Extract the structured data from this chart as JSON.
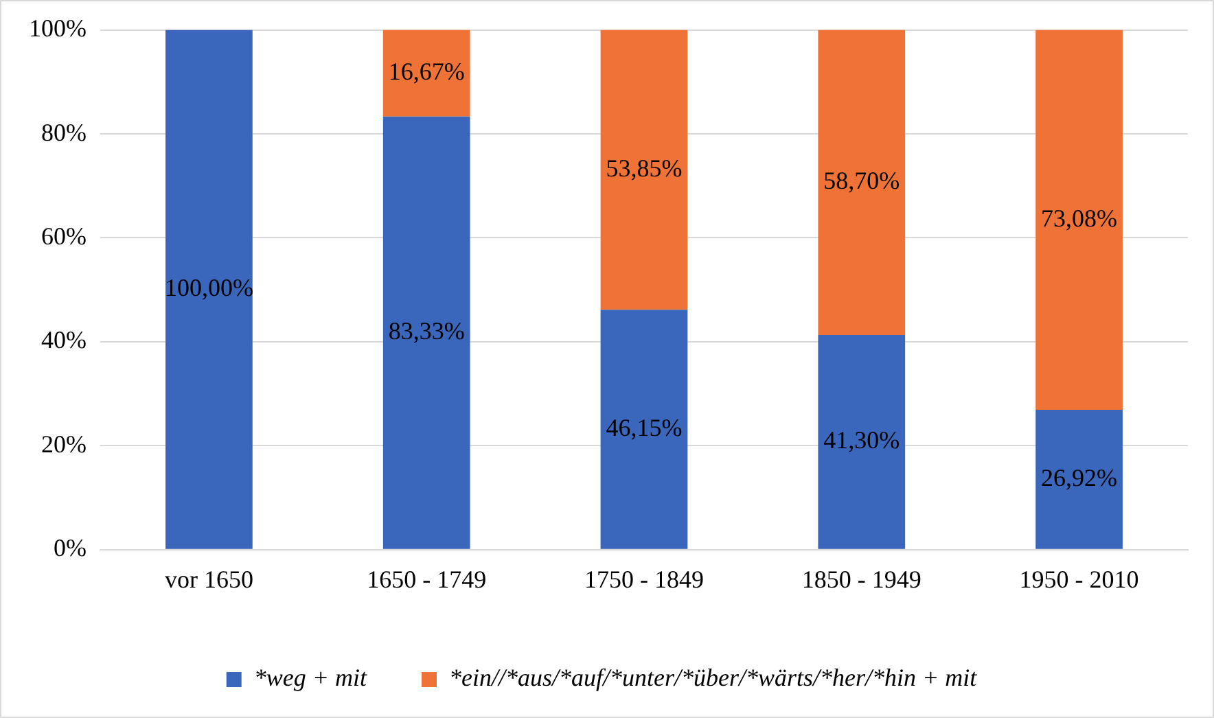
{
  "chart_data": {
    "type": "bar",
    "stacked": true,
    "categories": [
      "vor 1650",
      "1650 - 1749",
      "1750 - 1849",
      "1850 - 1949",
      "1950 - 2010"
    ],
    "series": [
      {
        "name": "*weg + mit",
        "color": "#3a66bb",
        "values": [
          100,
          83.33,
          46.15,
          41.3,
          26.92
        ],
        "value_labels": [
          "100,00%",
          "83,33%",
          "46,15%",
          "41,30%",
          "26,92%"
        ]
      },
      {
        "name": "*ein//*aus/*auf/*unter/*über/*wärts/*her/*hin + mit",
        "color": "#ef7336",
        "values": [
          0,
          16.67,
          53.85,
          58.7,
          73.08
        ],
        "value_labels": [
          null,
          "16,67%",
          "53,85%",
          "58,70%",
          "73,08%"
        ]
      }
    ],
    "ylim": [
      0,
      100
    ],
    "yticks": [
      {
        "value": 0,
        "label": "0%"
      },
      {
        "value": 20,
        "label": "20%"
      },
      {
        "value": 40,
        "label": "40%"
      },
      {
        "value": 60,
        "label": "60%"
      },
      {
        "value": 80,
        "label": "80%"
      },
      {
        "value": 100,
        "label": "100%"
      }
    ],
    "grid": "y",
    "legend": "bottom"
  }
}
